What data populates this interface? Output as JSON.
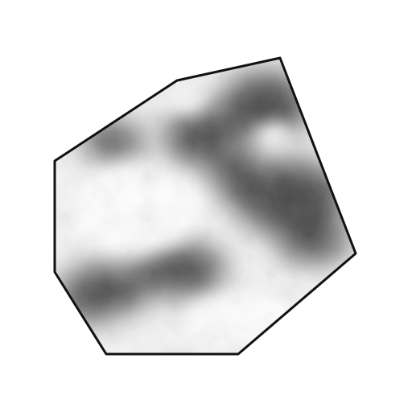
{
  "scene": {
    "background_color": "#ffffff",
    "shape": {
      "kind": "irregular-polygon",
      "vertex_count": 8,
      "texture": "grayscale-cloud-noise",
      "outline_color": "#111111",
      "base_color": "#f4f4f4",
      "shadow_color": "#4a4a4a"
    }
  }
}
